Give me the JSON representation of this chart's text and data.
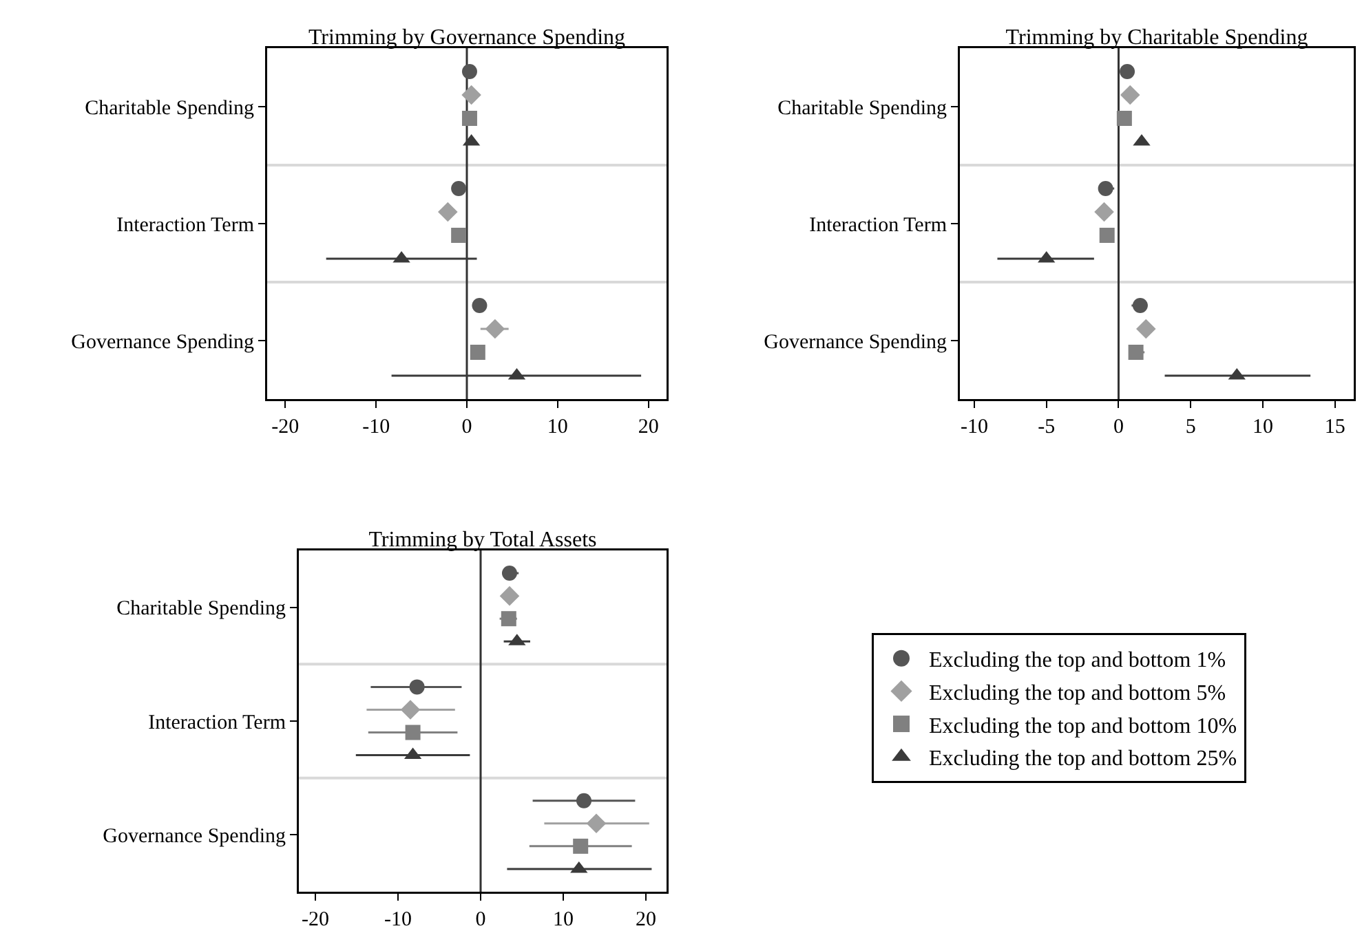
{
  "chart_data": [
    {
      "type": "scatter",
      "orientation": "horizontal",
      "title": "Trimming by Governance Spending",
      "categories": [
        "Charitable Spending",
        "Interaction Term",
        "Governance Spending"
      ],
      "xlim": [
        -22,
        22
      ],
      "xticks": [
        -20,
        -10,
        0,
        10,
        20
      ],
      "grid": "y",
      "legend": false,
      "ref_lines": [
        {
          "axis": "x",
          "value": 0,
          "color": "#333333"
        }
      ],
      "series": [
        {
          "color": "#555555",
          "marker": "circle",
          "values": [
            0.3,
            -0.9,
            1.4
          ],
          "errors": [
            null,
            null,
            [
              0.6,
              2.2
            ]
          ]
        },
        {
          "color": "#a0a0a0",
          "marker": "diamond",
          "values": [
            0.5,
            -2.1,
            3.1
          ],
          "errors": [
            null,
            null,
            [
              1.5,
              4.6
            ]
          ]
        },
        {
          "color": "#808080",
          "marker": "square",
          "values": [
            0.3,
            -0.9,
            1.2
          ],
          "errors": [
            null,
            null,
            null
          ]
        },
        {
          "color": "#3a3a3a",
          "marker": "triangle",
          "values": [
            0.5,
            -7.2,
            5.5
          ],
          "errors": [
            null,
            [
              -15.5,
              1.1
            ],
            [
              -8.3,
              19.2
            ]
          ]
        }
      ]
    },
    {
      "type": "scatter",
      "orientation": "horizontal",
      "title": "Trimming by Charitable Spending",
      "categories": [
        "Charitable Spending",
        "Interaction Term",
        "Governance Spending"
      ],
      "xlim": [
        -11,
        16.3
      ],
      "xticks": [
        -10,
        -5,
        0,
        5,
        10,
        15
      ],
      "grid": "y",
      "legend": false,
      "ref_lines": [
        {
          "axis": "x",
          "value": 0,
          "color": "#333333"
        }
      ],
      "series": [
        {
          "color": "#555555",
          "marker": "circle",
          "values": [
            0.6,
            -0.9,
            1.5
          ],
          "errors": [
            null,
            [
              -1.4,
              -0.3
            ],
            [
              0.9,
              2.0
            ]
          ]
        },
        {
          "color": "#a0a0a0",
          "marker": "diamond",
          "values": [
            0.8,
            -1.0,
            1.9
          ],
          "errors": [
            null,
            null,
            null
          ]
        },
        {
          "color": "#808080",
          "marker": "square",
          "values": [
            0.4,
            -0.8,
            1.2
          ],
          "errors": [
            null,
            null,
            [
              0.7,
              1.8
            ]
          ]
        },
        {
          "color": "#3a3a3a",
          "marker": "triangle",
          "values": [
            1.6,
            -5.0,
            8.2
          ],
          "errors": [
            null,
            [
              -8.4,
              -1.7
            ],
            [
              3.2,
              13.3
            ]
          ]
        }
      ]
    },
    {
      "type": "scatter",
      "orientation": "horizontal",
      "title": "Trimming by Total Assets",
      "categories": [
        "Charitable Spending",
        "Interaction Term",
        "Governance Spending"
      ],
      "xlim": [
        -22,
        22.5
      ],
      "xticks": [
        -20,
        -10,
        0,
        10,
        20
      ],
      "grid": "y",
      "legend": "right",
      "ref_lines": [
        {
          "axis": "x",
          "value": 0,
          "color": "#333333"
        }
      ],
      "series": [
        {
          "name": "Excluding the top and bottom 1%",
          "color": "#555555",
          "marker": "circle",
          "values": [
            3.5,
            -7.7,
            12.5
          ],
          "errors": [
            [
              2.6,
              4.6
            ],
            [
              -13.3,
              -2.3
            ],
            [
              6.3,
              18.7
            ]
          ]
        },
        {
          "name": "Excluding the top and bottom 5%",
          "color": "#a0a0a0",
          "marker": "diamond",
          "values": [
            3.5,
            -8.5,
            14.0
          ],
          "errors": [
            null,
            [
              -13.8,
              -3.1
            ],
            [
              7.7,
              20.4
            ]
          ]
        },
        {
          "name": "Excluding the top and bottom 10%",
          "color": "#808080",
          "marker": "square",
          "values": [
            3.4,
            -8.2,
            12.1
          ],
          "errors": [
            [
              2.3,
              4.4
            ],
            [
              -13.6,
              -2.8
            ],
            [
              5.9,
              18.3
            ]
          ]
        },
        {
          "name": "Excluding the top and bottom 25%",
          "color": "#3a3a3a",
          "marker": "triangle",
          "values": [
            4.4,
            -8.2,
            11.9
          ],
          "errors": [
            [
              2.8,
              6.0
            ],
            [
              -15.1,
              -1.3
            ],
            [
              3.2,
              20.7
            ]
          ]
        }
      ]
    }
  ]
}
